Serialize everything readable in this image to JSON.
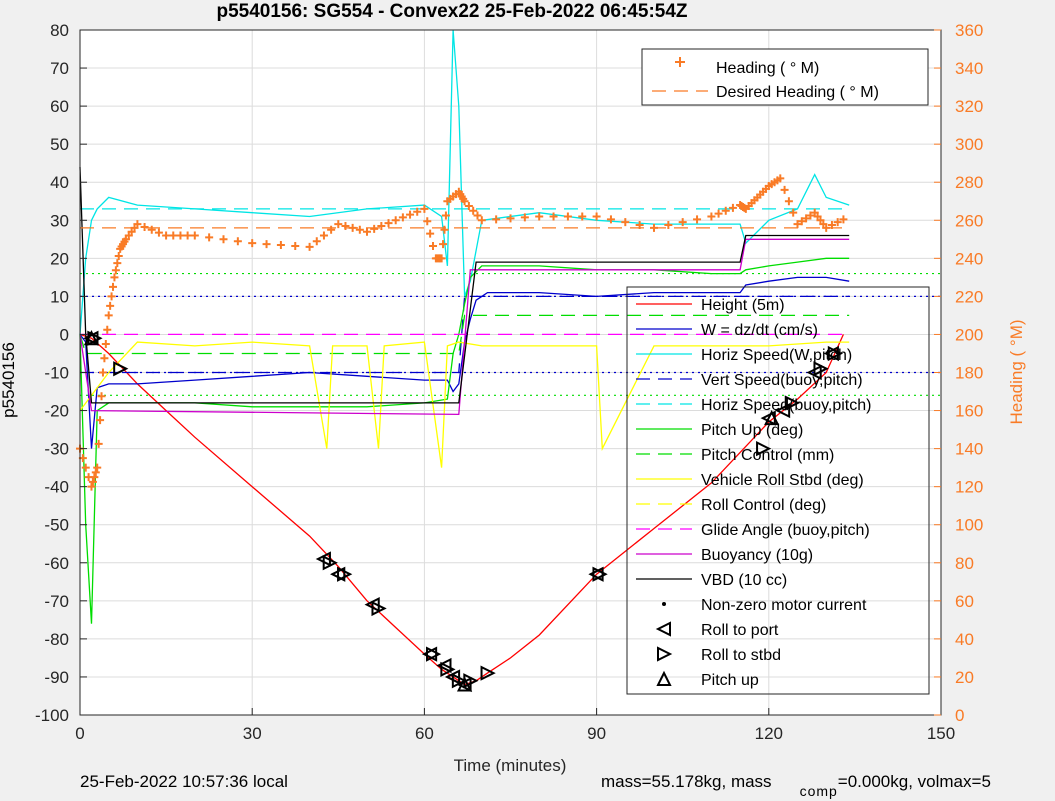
{
  "chart_data": {
    "type": "line",
    "title": "p5540156: SG554 - Convex22 25-Feb-2022 06:45:54Z",
    "xlabel": "Time (minutes)",
    "ylabel": "p5540156",
    "y2label": "Heading (  °M)",
    "xlim": [
      0,
      150
    ],
    "ylim": [
      -100,
      80
    ],
    "y2lim": [
      0,
      360
    ],
    "x_ticks": [
      0,
      30,
      60,
      90,
      120,
      150
    ],
    "y_ticks": [
      -100,
      -90,
      -80,
      -70,
      -60,
      -50,
      -40,
      -30,
      -20,
      -10,
      0,
      10,
      20,
      30,
      40,
      50,
      60,
      70,
      80
    ],
    "y2_ticks": [
      0,
      20,
      40,
      60,
      80,
      100,
      120,
      140,
      160,
      180,
      200,
      220,
      240,
      260,
      280,
      300,
      320,
      340,
      360
    ],
    "grid": true,
    "legend_right": [
      {
        "name": "Height (5m)",
        "color": "#ff0000",
        "style": "solid"
      },
      {
        "name": "W = dz/dt (cm/s)",
        "color": "#0000cc",
        "style": "solid"
      },
      {
        "name": "Horiz Speed(W,pitch)",
        "color": "#00e5e5",
        "style": "solid"
      },
      {
        "name": "Vert Speed(buoy,pitch)",
        "color": "#0000cc",
        "style": "dashed"
      },
      {
        "name": "Horiz Speed(buoy,pitch)",
        "color": "#00e5e5",
        "style": "dashed"
      },
      {
        "name": "Pitch Up (deg)",
        "color": "#00dd00",
        "style": "solid"
      },
      {
        "name": "Pitch Control (mm)",
        "color": "#00dd00",
        "style": "dashed"
      },
      {
        "name": "Vehicle Roll Stbd (deg)",
        "color": "#ffff00",
        "style": "solid"
      },
      {
        "name": "Roll Control (deg)",
        "color": "#ffff00",
        "style": "dashed"
      },
      {
        "name": "Glide Angle (buoy,pitch)",
        "color": "#ff00ff",
        "style": "dashed"
      },
      {
        "name": "Buoyancy (10g)",
        "color": "#cc00cc",
        "style": "solid"
      },
      {
        "name": "VBD (10 cc)",
        "color": "#000000",
        "style": "solid"
      },
      {
        "name": "Non-zero motor current",
        "color": "#000000",
        "style": "dot"
      },
      {
        "name": "Roll to port",
        "color": "#000000",
        "style": "tri-left"
      },
      {
        "name": "Roll to stbd",
        "color": "#000000",
        "style": "tri-right"
      },
      {
        "name": "Pitch up",
        "color": "#000000",
        "style": "tri-up"
      }
    ],
    "legend_heading": [
      {
        "name": "Heading (  ° M)",
        "color": "#f97b26",
        "style": "plus"
      },
      {
        "name": "Desired Heading (   ° M)",
        "color": "#f97b26",
        "style": "dashed"
      }
    ],
    "series": [
      {
        "name": "Height (5m)",
        "color": "#ff0000",
        "x": [
          0,
          2,
          5,
          10,
          15,
          20,
          30,
          40,
          45,
          50,
          55,
          60,
          63,
          65,
          67,
          69,
          71,
          75,
          80,
          90,
          100,
          110,
          120,
          125,
          130,
          133
        ],
        "y": [
          0,
          -1,
          -5,
          -13,
          -20,
          -27,
          -40,
          -53,
          -61,
          -70,
          -77,
          -84,
          -88,
          -90,
          -92,
          -91,
          -89,
          -85,
          -79,
          -63,
          -51,
          -39,
          -23,
          -17,
          -10,
          0
        ]
      },
      {
        "name": "W = dz/dt (cm/s)",
        "color": "#0000cc",
        "x": [
          0,
          1,
          2,
          3,
          5,
          10,
          20,
          30,
          40,
          50,
          60,
          64,
          65,
          66,
          67,
          68,
          69,
          70,
          71,
          80,
          90,
          100,
          110,
          115,
          116,
          120,
          125,
          130,
          134
        ],
        "y": [
          0,
          -2,
          -30,
          -14,
          -13,
          -13,
          -12,
          -11,
          -10,
          -11,
          -12,
          -12,
          -15,
          -13,
          -2,
          4,
          9,
          10,
          11,
          11,
          10,
          11,
          11,
          11,
          13,
          14,
          15,
          15,
          14
        ]
      },
      {
        "name": "Horiz Speed(W,pitch)",
        "color": "#00e5e5",
        "x": [
          0,
          1,
          2,
          3,
          5,
          10,
          20,
          30,
          40,
          50,
          60,
          63,
          64,
          65,
          66,
          67,
          68,
          70,
          80,
          90,
          100,
          110,
          115,
          116,
          120,
          125,
          128,
          130,
          134
        ],
        "y": [
          0,
          20,
          30,
          33,
          36,
          34,
          33,
          32,
          31,
          33,
          34,
          31,
          18,
          80,
          60,
          10,
          14,
          30,
          32,
          30,
          29,
          29,
          29,
          24,
          30,
          33,
          42,
          36,
          34
        ]
      },
      {
        "name": "Vert Speed(buoy,pitch)",
        "color": "#0000cc",
        "dashed": true,
        "x": [
          0,
          66,
          67,
          134
        ],
        "y": [
          -10,
          -10,
          10,
          10
        ]
      },
      {
        "name": "Horiz Speed(buoy,pitch)",
        "color": "#00e5e5",
        "dashed": true,
        "x": [
          0,
          66,
          67,
          134
        ],
        "y": [
          33,
          33,
          33,
          33
        ]
      },
      {
        "name": "Pitch Up (deg)",
        "color": "#00dd00",
        "x": [
          0,
          1,
          2,
          3,
          5,
          10,
          20,
          30,
          40,
          50,
          60,
          64,
          65,
          66,
          67,
          68,
          70,
          80,
          90,
          100,
          110,
          115,
          116,
          120,
          125,
          130,
          134
        ],
        "y": [
          0,
          -50,
          -76,
          -20,
          -18,
          -18,
          -18,
          -19,
          -19,
          -19,
          -18,
          -17,
          -5,
          0,
          8,
          15,
          18,
          18,
          17,
          17,
          16,
          16,
          17,
          18,
          19,
          20,
          20
        ]
      },
      {
        "name": "Pitch Control (mm)",
        "color": "#00dd00",
        "dashed": true,
        "x": [
          0,
          1,
          66,
          67,
          134
        ],
        "y": [
          0,
          -5,
          -5,
          5,
          5
        ]
      },
      {
        "name": "Vehicle Roll Stbd (deg)",
        "color": "#ffff00",
        "x": [
          0,
          5,
          10,
          20,
          30,
          40,
          43,
          44,
          50,
          52,
          53,
          60,
          63,
          64,
          66,
          70,
          80,
          90,
          91,
          100,
          110,
          120,
          130,
          134
        ],
        "y": [
          -20,
          -10,
          -2,
          -3,
          -2,
          -3,
          -30,
          -3,
          -3,
          -30,
          -3,
          -2,
          -35,
          -3,
          -2,
          -3,
          -3,
          -3,
          -30,
          -3,
          -3,
          -3,
          -2,
          -2
        ]
      },
      {
        "name": "Glide Angle (buoy,pitch)",
        "color": "#ff00ff",
        "dashed": true,
        "x": [
          0,
          66,
          67,
          134
        ],
        "y": [
          0,
          0,
          0,
          0
        ]
      },
      {
        "name": "Buoyancy (10g)",
        "color": "#cc00cc",
        "x": [
          0,
          2,
          66,
          68,
          115,
          116,
          134
        ],
        "y": [
          0,
          -20,
          -21,
          17,
          17,
          25,
          25
        ]
      },
      {
        "name": "VBD (10 cc)",
        "color": "#000000",
        "x": [
          0,
          1,
          2,
          66,
          69,
          115,
          116,
          134
        ],
        "y": [
          44,
          0,
          -18,
          -18,
          19,
          19,
          26,
          26
        ]
      },
      {
        "name": "Heading (  ° M)",
        "color": "#f97b26",
        "axis": "y2",
        "x": [
          0,
          2,
          3,
          4,
          5,
          6,
          7,
          8,
          10,
          15,
          20,
          30,
          40,
          45,
          50,
          55,
          60,
          62,
          63,
          64,
          66,
          67,
          70,
          80,
          90,
          100,
          110,
          115,
          116,
          118,
          120,
          122,
          125,
          128,
          130,
          134
        ],
        "y": [
          140,
          120,
          130,
          180,
          210,
          230,
          245,
          250,
          258,
          252,
          252,
          248,
          246,
          258,
          254,
          260,
          266,
          240,
          240,
          270,
          275,
          270,
          260,
          262,
          262,
          256,
          262,
          268,
          266,
          272,
          278,
          282,
          258,
          264,
          256,
          262
        ]
      },
      {
        "name": "Desired Heading (   ° M)",
        "color": "#f97b26",
        "axis": "y2",
        "dashed": true,
        "x": [
          0,
          134
        ],
        "y": [
          256,
          256
        ]
      }
    ],
    "reference_lines": [
      {
        "color": "#00dd00",
        "style": "dotted",
        "y": 16
      },
      {
        "color": "#00dd00",
        "style": "dotted",
        "y": -16
      },
      {
        "color": "#0000cc",
        "style": "dotted",
        "y": 10
      },
      {
        "color": "#0000cc",
        "style": "dotted",
        "y": -10
      }
    ],
    "markers": {
      "roll_to_port": [
        [
          2,
          -1
        ],
        [
          42.5,
          -59
        ],
        [
          45,
          -63
        ],
        [
          51,
          -71
        ],
        [
          61,
          -84
        ],
        [
          63.5,
          -87
        ],
        [
          65,
          -90
        ],
        [
          67,
          -92
        ],
        [
          90,
          -63
        ],
        [
          120,
          -22
        ],
        [
          122.5,
          -20
        ],
        [
          128,
          -10
        ],
        [
          131,
          -5
        ]
      ],
      "roll_to_stbd": [
        [
          2.5,
          -1
        ],
        [
          7,
          -9
        ],
        [
          43.5,
          -60
        ],
        [
          46,
          -63
        ],
        [
          52,
          -72
        ],
        [
          61.5,
          -84
        ],
        [
          64,
          -88
        ],
        [
          66,
          -91
        ],
        [
          68,
          -91
        ],
        [
          71,
          -89
        ],
        [
          90.5,
          -63
        ],
        [
          119,
          -30
        ],
        [
          124,
          -18
        ],
        [
          129,
          -9
        ],
        [
          131.5,
          -5
        ]
      ],
      "pitch_up": [
        [
          2,
          -1
        ],
        [
          67,
          -92
        ],
        [
          120.5,
          -22
        ]
      ]
    }
  },
  "footer": {
    "local_time": "25-Feb-2022 10:57:36 local",
    "mass_text": "mass=55.178kg, mass",
    "comp_sub": "comp",
    "volmax_text": "=0.000kg, volmax=5"
  }
}
